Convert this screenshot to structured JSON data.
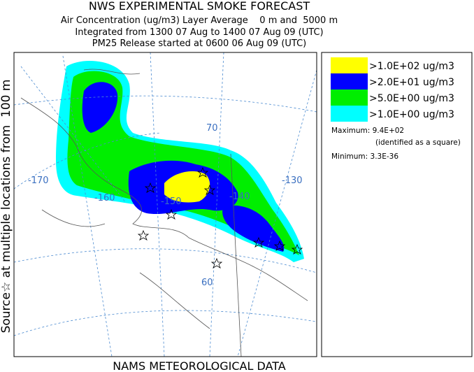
{
  "header": {
    "title": "NWS EXPERIMENTAL SMOKE FORECAST",
    "lines": [
      "Air Concentration (ug/m3) Layer Average    0 m and  5000 m",
      "Integrated from 1300 07 Aug to 1400 07 Aug 09 (UTC)",
      "PM25 Release started at 0600 06 Aug 09 (UTC)"
    ]
  },
  "side_label": "Source☆ at multiple locations from  100 m",
  "legend": {
    "items": [
      {
        "label": ">1.0E+02 ug/m3",
        "color": "#ffff00"
      },
      {
        "label": ">2.0E+01 ug/m3",
        "color": "#0000ff"
      },
      {
        "label": ">5.0E+00 ug/m3",
        "color": "#00ee00"
      },
      {
        "label": ">1.0E+00 ug/m3",
        "color": "#00ffff"
      }
    ],
    "maximum": "Maximum: 9.4E+02",
    "maximum_note": "(identified as a square)",
    "minimum": "Minimum: 3.3E-36"
  },
  "map": {
    "labels": [
      "-170",
      "-160",
      "-150",
      "-140",
      "-130",
      "70",
      "60"
    ]
  },
  "footer": "NAMS METEOROLOGICAL DATA"
}
